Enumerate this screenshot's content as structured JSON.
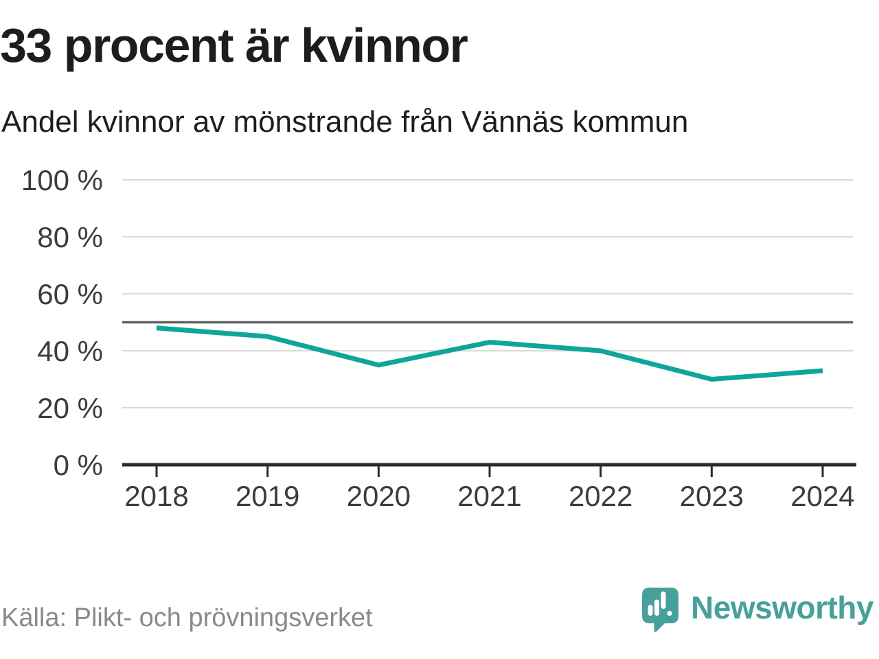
{
  "header": {
    "title": "33 procent är kvinnor",
    "subtitle": "Andel kvinnor av mönstrande från Vännäs kommun"
  },
  "chart_data": {
    "type": "line",
    "title": "33 procent är kvinnor",
    "subtitle": "Andel kvinnor av mönstrande från Vännäs kommun",
    "x": [
      2018,
      2019,
      2020,
      2021,
      2022,
      2023,
      2024
    ],
    "series": [
      {
        "name": "Andel kvinnor av mönstrande",
        "values": [
          48,
          45,
          35,
          43,
          40,
          30,
          33
        ]
      }
    ],
    "unit": "%",
    "xlabel": "",
    "ylabel": "",
    "ylim": [
      0,
      100
    ],
    "yticks": [
      0,
      20,
      40,
      60,
      80,
      100
    ],
    "ytick_suffix": " %",
    "reference_line": 50,
    "grid": true,
    "legend_position": "none",
    "line_color": "#0fa59b"
  },
  "footer": {
    "source": "Källa: Plikt- och prövningsverket",
    "brand": "Newsworthy"
  },
  "colors": {
    "accent": "#0fa59b",
    "brand": "#47a09a",
    "text": "#1d1d1b",
    "muted": "#8a8a8a",
    "grid": "#d9d9d9",
    "reference": "#616161",
    "axis": "#2b2b2b"
  }
}
